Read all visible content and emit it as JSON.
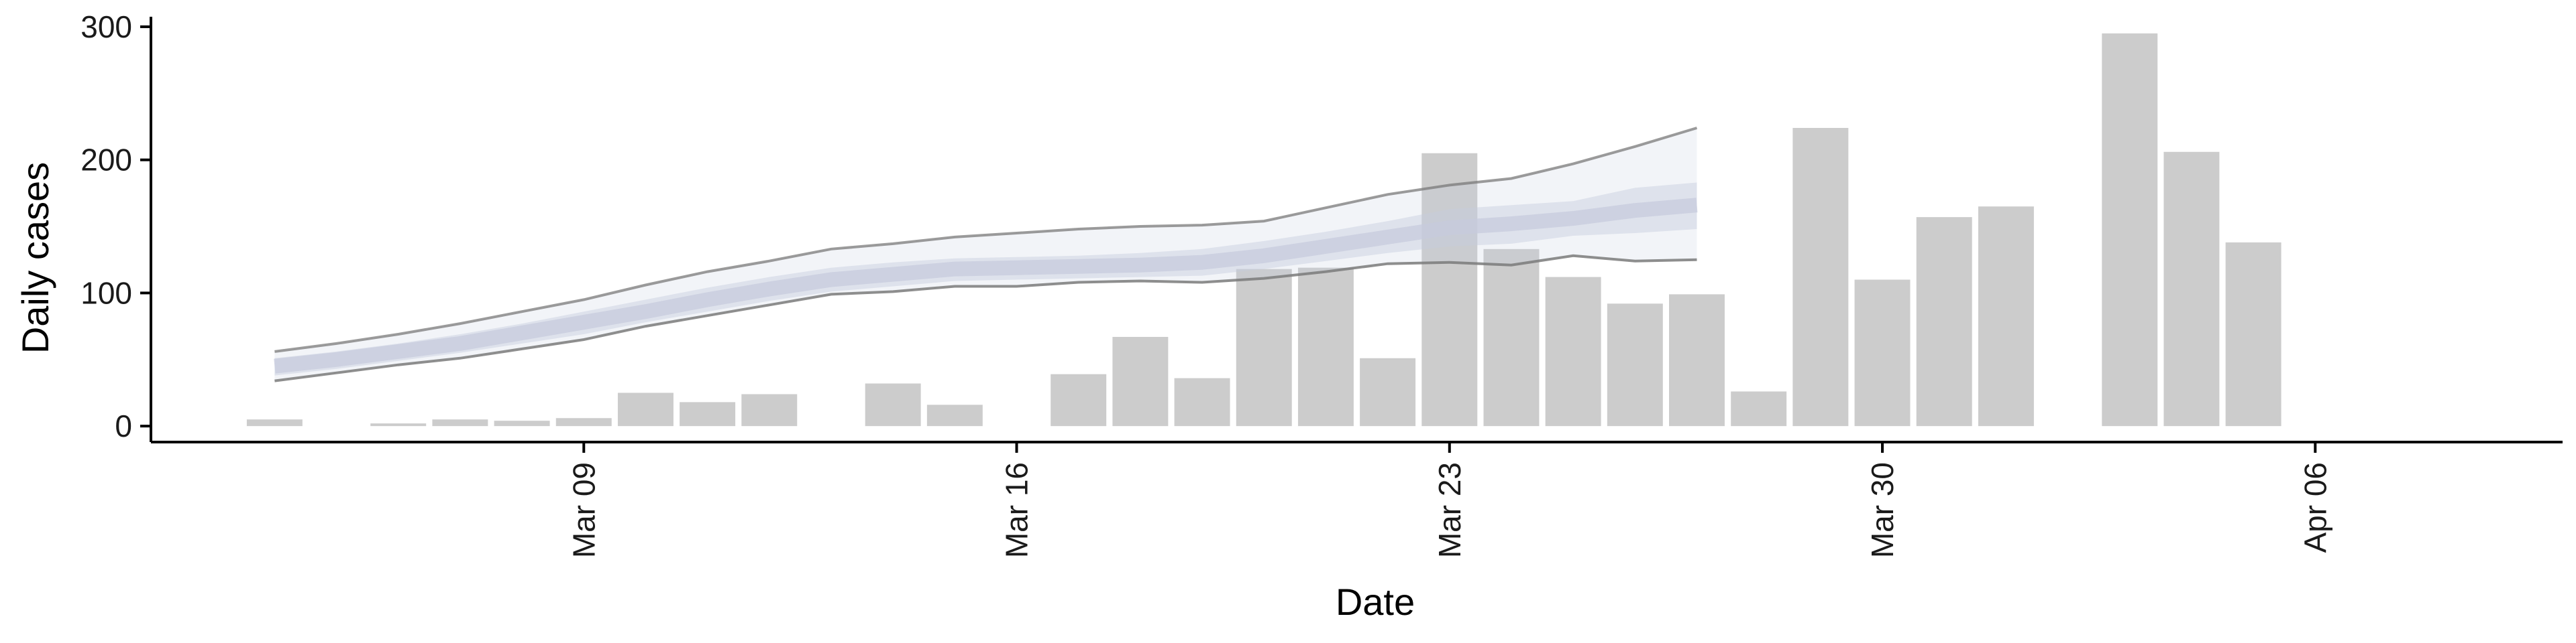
{
  "chart_data": {
    "type": "bar",
    "xlabel": "Date",
    "ylabel": "Daily cases",
    "ylim": [
      -12,
      305
    ],
    "yticks": [
      0,
      100,
      200,
      300
    ],
    "x_range": [
      "2020-03-02",
      "2020-04-10"
    ],
    "xticks": [
      {
        "date": "2020-03-09",
        "label": "Mar 09"
      },
      {
        "date": "2020-03-16",
        "label": "Mar 16"
      },
      {
        "date": "2020-03-23",
        "label": "Mar 23"
      },
      {
        "date": "2020-03-30",
        "label": "Mar 30"
      },
      {
        "date": "2020-04-06",
        "label": "Apr 06"
      }
    ],
    "year": 2020,
    "bars": {
      "color": "#cccccc",
      "points": [
        {
          "date": "2020-03-04",
          "value": 5
        },
        {
          "date": "2020-03-06",
          "value": 2
        },
        {
          "date": "2020-03-07",
          "value": 5
        },
        {
          "date": "2020-03-08",
          "value": 4
        },
        {
          "date": "2020-03-09",
          "value": 6
        },
        {
          "date": "2020-03-10",
          "value": 25
        },
        {
          "date": "2020-03-11",
          "value": 18
        },
        {
          "date": "2020-03-12",
          "value": 24
        },
        {
          "date": "2020-03-14",
          "value": 32
        },
        {
          "date": "2020-03-15",
          "value": 16
        },
        {
          "date": "2020-03-17",
          "value": 39
        },
        {
          "date": "2020-03-18",
          "value": 67
        },
        {
          "date": "2020-03-19",
          "value": 36
        },
        {
          "date": "2020-03-20",
          "value": 118
        },
        {
          "date": "2020-03-21",
          "value": 119
        },
        {
          "date": "2020-03-22",
          "value": 51
        },
        {
          "date": "2020-03-23",
          "value": 205
        },
        {
          "date": "2020-03-24",
          "value": 133
        },
        {
          "date": "2020-03-25",
          "value": 112
        },
        {
          "date": "2020-03-26",
          "value": 92
        },
        {
          "date": "2020-03-27",
          "value": 99
        },
        {
          "date": "2020-03-28",
          "value": 26
        },
        {
          "date": "2020-03-29",
          "value": 224
        },
        {
          "date": "2020-03-30",
          "value": 110
        },
        {
          "date": "2020-03-31",
          "value": 157
        },
        {
          "date": "2020-04-01",
          "value": 165
        },
        {
          "date": "2020-04-03",
          "value": 295
        },
        {
          "date": "2020-04-04",
          "value": 206
        },
        {
          "date": "2020-04-05",
          "value": 138
        }
      ]
    },
    "estimate": {
      "dates": [
        "2020-03-04",
        "2020-03-05",
        "2020-03-06",
        "2020-03-07",
        "2020-03-08",
        "2020-03-09",
        "2020-03-10",
        "2020-03-11",
        "2020-03-12",
        "2020-03-13",
        "2020-03-14",
        "2020-03-15",
        "2020-03-16",
        "2020-03-17",
        "2020-03-18",
        "2020-03-19",
        "2020-03-20",
        "2020-03-21",
        "2020-03-22",
        "2020-03-23",
        "2020-03-24",
        "2020-03-25",
        "2020-03-26",
        "2020-03-27"
      ],
      "upper": [
        56,
        62,
        69,
        77,
        86,
        95,
        106,
        116,
        124,
        133,
        137,
        142,
        145,
        148,
        150,
        151,
        154,
        164,
        174,
        181,
        186,
        197,
        210,
        224
      ],
      "lower": [
        34,
        40,
        46,
        51,
        58,
        65,
        75,
        83,
        91,
        99,
        101,
        105,
        105,
        108,
        109,
        108,
        111,
        116,
        122,
        123,
        121,
        128,
        124,
        125
      ],
      "inner_upper": [
        51,
        56,
        62,
        69,
        77,
        86,
        95,
        104,
        112,
        119,
        123,
        126,
        127,
        128,
        130,
        133,
        139,
        146,
        154,
        163,
        166,
        169,
        179,
        183
      ],
      "inner_lower": [
        38,
        43,
        49,
        55,
        62,
        69,
        78,
        86,
        94,
        101,
        105,
        109,
        110,
        111,
        112,
        113,
        118,
        124,
        130,
        135,
        137,
        143,
        145,
        148
      ],
      "mid": [
        45,
        50,
        56,
        62,
        70,
        78,
        86,
        95,
        103,
        110,
        114,
        118,
        119,
        120,
        121,
        123,
        128,
        135,
        142,
        149,
        152,
        156,
        162,
        166
      ],
      "line_color": "#7a7a7a",
      "band_color": "#c6cbdd"
    }
  }
}
